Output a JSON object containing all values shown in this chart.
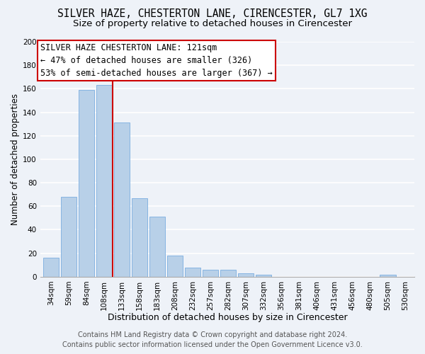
{
  "title": "SILVER HAZE, CHESTERTON LANE, CIRENCESTER, GL7 1XG",
  "subtitle": "Size of property relative to detached houses in Cirencester",
  "xlabel": "Distribution of detached houses by size in Cirencester",
  "ylabel": "Number of detached properties",
  "categories": [
    "34sqm",
    "59sqm",
    "84sqm",
    "108sqm",
    "133sqm",
    "158sqm",
    "183sqm",
    "208sqm",
    "232sqm",
    "257sqm",
    "282sqm",
    "307sqm",
    "332sqm",
    "356sqm",
    "381sqm",
    "406sqm",
    "431sqm",
    "456sqm",
    "480sqm",
    "505sqm",
    "530sqm"
  ],
  "values": [
    16,
    68,
    159,
    163,
    131,
    67,
    51,
    18,
    8,
    6,
    6,
    3,
    2,
    0,
    0,
    0,
    0,
    0,
    0,
    2,
    0
  ],
  "bar_color": "#b8d0e8",
  "bar_edge_color": "#7aade0",
  "highlight_line_color": "#cc0000",
  "annotation_box_text": "SILVER HAZE CHESTERTON LANE: 121sqm\n← 47% of detached houses are smaller (326)\n53% of semi-detached houses are larger (367) →",
  "annotation_box_color": "#ffffff",
  "annotation_box_edge_color": "#cc0000",
  "ylim": [
    0,
    200
  ],
  "yticks": [
    0,
    20,
    40,
    60,
    80,
    100,
    120,
    140,
    160,
    180,
    200
  ],
  "footer_line1": "Contains HM Land Registry data © Crown copyright and database right 2024.",
  "footer_line2": "Contains public sector information licensed under the Open Government Licence v3.0.",
  "background_color": "#eef2f8",
  "plot_background_color": "#eef2f8",
  "grid_color": "#ffffff",
  "title_fontsize": 10.5,
  "subtitle_fontsize": 9.5,
  "xlabel_fontsize": 9,
  "ylabel_fontsize": 8.5,
  "tick_fontsize": 7.5,
  "annotation_fontsize": 8.5,
  "footer_fontsize": 7
}
